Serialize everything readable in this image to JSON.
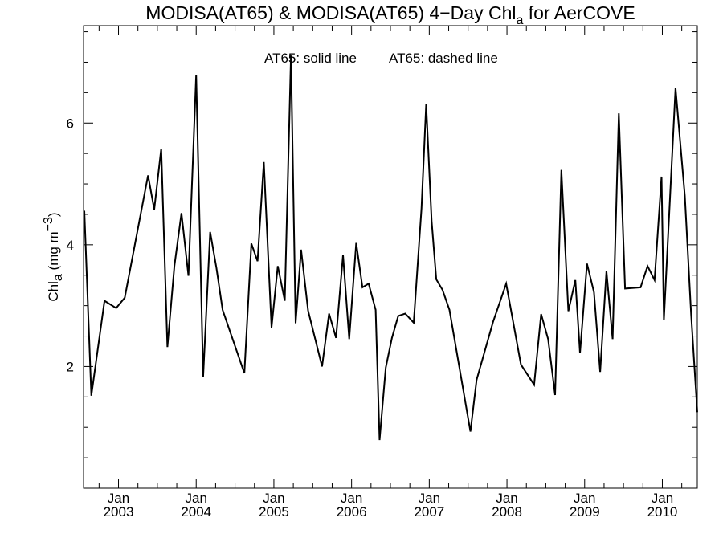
{
  "chart_data": {
    "type": "line",
    "title": {
      "prefix": "MODISA(AT65) & MODISA(AT65) 4−Day Chl",
      "subscript": "a",
      "suffix": " for AerCOVE"
    },
    "legend": {
      "solid": "AT65: solid line",
      "dashed": "AT65: dashed line"
    },
    "ylabel": {
      "prefix": "Chl",
      "subscript": "a",
      "units": " (mg m",
      "superscript": "−3",
      "close": ")"
    },
    "xlim": [
      2002.55,
      2010.45
    ],
    "ylim": [
      0.0,
      7.6
    ],
    "y_ticks": [
      2,
      4,
      6
    ],
    "x_ticks": [
      {
        "year": 2003,
        "top": "Jan",
        "bottom": "2003"
      },
      {
        "year": 2004,
        "top": "Jan",
        "bottom": "2004"
      },
      {
        "year": 2005,
        "top": "Jan",
        "bottom": "2005"
      },
      {
        "year": 2006,
        "top": "Jan",
        "bottom": "2006"
      },
      {
        "year": 2007,
        "top": "Jan",
        "bottom": "2007"
      },
      {
        "year": 2008,
        "top": "Jan",
        "bottom": "2008"
      },
      {
        "year": 2009,
        "top": "Jan",
        "bottom": "2009"
      },
      {
        "year": 2010,
        "top": "Jan",
        "bottom": "2010"
      }
    ],
    "series": [
      {
        "style": "solid",
        "x": [
          2002.56,
          2002.65,
          2002.82,
          2002.97,
          2003.08,
          2003.38,
          2003.46,
          2003.55,
          2003.63,
          2003.72,
          2003.81,
          2003.9,
          2004.0,
          2004.09,
          2004.18,
          2004.26,
          2004.34,
          2004.62,
          2004.71,
          2004.79,
          2004.87,
          2004.97,
          2005.05,
          2005.14,
          2005.22,
          2005.28,
          2005.35,
          2005.44,
          2005.62,
          2005.71,
          2005.8,
          2005.89,
          2005.97,
          2006.06,
          2006.14,
          2006.22,
          2006.31,
          2006.36,
          2006.44,
          2006.52,
          2006.6,
          2006.69,
          2006.8,
          2006.9,
          2006.96,
          2007.03,
          2007.09,
          2007.17,
          2007.26,
          2007.53,
          2007.61,
          2007.82,
          2007.99,
          2008.18,
          2008.35,
          2008.44,
          2008.53,
          2008.62,
          2008.7,
          2008.79,
          2008.88,
          2008.94,
          2009.03,
          2009.12,
          2009.2,
          2009.28,
          2009.36,
          2009.44,
          2009.52,
          2009.72,
          2009.81,
          2009.9,
          2009.99,
          2010.02,
          2010.17,
          2010.29,
          2010.37,
          2010.45
        ],
        "y": [
          4.56,
          1.52,
          3.08,
          2.96,
          3.13,
          5.14,
          4.58,
          5.58,
          2.32,
          3.65,
          4.52,
          3.49,
          6.79,
          1.83,
          4.21,
          3.62,
          2.93,
          1.89,
          4.02,
          3.73,
          5.36,
          2.64,
          3.65,
          3.08,
          7.11,
          2.71,
          3.92,
          2.92,
          2.0,
          2.87,
          2.47,
          3.83,
          2.45,
          4.03,
          3.3,
          3.36,
          2.93,
          0.79,
          1.98,
          2.47,
          2.83,
          2.87,
          2.72,
          4.6,
          6.31,
          4.39,
          3.43,
          3.26,
          2.93,
          0.93,
          1.78,
          2.73,
          3.36,
          2.03,
          1.7,
          2.86,
          2.45,
          1.53,
          5.23,
          2.91,
          3.42,
          2.22,
          3.69,
          3.22,
          1.91,
          3.57,
          2.45,
          6.16,
          3.28,
          3.3,
          3.65,
          3.42,
          5.12,
          2.76,
          6.58,
          4.8,
          2.86,
          1.25
        ]
      }
    ],
    "colors": {
      "line": "#000000",
      "axes": "#000000",
      "background": "#ffffff"
    }
  }
}
